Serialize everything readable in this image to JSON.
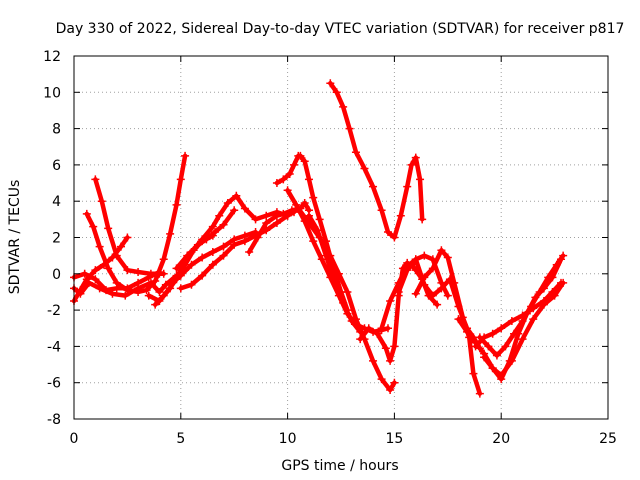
{
  "chart_data": {
    "type": "line",
    "title": "Day 330 of 2022, Sidereal Day-to-day VTEC variation (SDTVAR) for receiver p817",
    "xlabel": "GPS time / hours",
    "ylabel": "SDTVAR / TECUs",
    "xlim": [
      0,
      25
    ],
    "ylim": [
      -8,
      12
    ],
    "x_ticks": [
      "0",
      "5",
      "10",
      "15",
      "20",
      "25"
    ],
    "y_ticks": [
      "-8",
      "-6",
      "-4",
      "-2",
      "0",
      "2",
      "4",
      "6",
      "8",
      "10",
      "12"
    ],
    "x_tick_values": [
      0,
      5,
      10,
      15,
      20,
      25
    ],
    "y_tick_values": [
      -8,
      -6,
      -4,
      -2,
      0,
      2,
      4,
      6,
      8,
      10,
      12
    ],
    "grid": true,
    "legend": "none",
    "marker": "plus",
    "color": "#ff0000",
    "series": [
      {
        "x": [
          0.0,
          0.3,
          0.6,
          1.0,
          1.4,
          1.8,
          2.2,
          2.5
        ],
        "y": [
          -1.5,
          -0.9,
          -0.3,
          0.2,
          0.5,
          0.9,
          1.5,
          2.0
        ]
      },
      {
        "x": [
          0.0,
          0.3,
          0.7,
          1.2,
          1.8,
          2.4,
          3.0,
          3.6,
          4.0,
          4.3,
          4.8,
          5.2
        ],
        "y": [
          -0.8,
          -1.1,
          -0.5,
          -0.8,
          -1.1,
          -1.2,
          -0.8,
          -0.5,
          -1.0,
          -0.6,
          -0.1,
          0.2
        ]
      },
      {
        "x": [
          0.0,
          0.5,
          1.0,
          1.5,
          2.0,
          2.5,
          3.0,
          3.5,
          4.0
        ],
        "y": [
          -0.2,
          0.0,
          -0.3,
          -0.9,
          -0.8,
          -0.8,
          -0.5,
          -0.2,
          0.1
        ]
      },
      {
        "x": [
          0.6,
          0.9,
          1.2,
          1.6,
          2.0,
          2.5,
          3.0,
          3.4,
          3.8,
          4.2,
          4.5,
          4.8,
          5.0,
          5.2
        ],
        "y": [
          3.3,
          2.6,
          1.5,
          0.3,
          -0.5,
          -0.9,
          -1.0,
          -0.9,
          -0.4,
          0.8,
          2.2,
          3.8,
          5.2,
          6.5
        ]
      },
      {
        "x": [
          1.0,
          1.3,
          1.6,
          2.0,
          2.5,
          3.0,
          3.6,
          4.0,
          4.2
        ],
        "y": [
          5.2,
          4.0,
          2.5,
          1.0,
          0.2,
          0.1,
          0.0,
          0.0,
          0.0
        ]
      },
      {
        "x": [
          3.5,
          4.0,
          4.5,
          5.0,
          5.5,
          6.0,
          6.5,
          6.8,
          7.2,
          7.6,
          8.0,
          8.5,
          9.0,
          9.5,
          10.0
        ],
        "y": [
          -1.2,
          -1.5,
          -0.8,
          0.2,
          1.2,
          1.9,
          2.6,
          3.2,
          3.9,
          4.3,
          3.6,
          3.0,
          3.2,
          3.4,
          3.2
        ]
      },
      {
        "x": [
          3.8,
          4.2,
          4.8,
          5.2,
          5.6,
          6.0,
          6.5
        ],
        "y": [
          -1.7,
          -1.2,
          -0.3,
          0.5,
          1.3,
          1.8,
          2.1
        ]
      },
      {
        "x": [
          4.5,
          5.0,
          5.5,
          6.0,
          6.5,
          7.0,
          7.5,
          8.0,
          8.5
        ],
        "y": [
          -0.6,
          -0.1,
          0.5,
          0.9,
          1.2,
          1.5,
          1.9,
          2.1,
          2.3
        ]
      },
      {
        "x": [
          5.0,
          5.5,
          6.0,
          6.5,
          7.0,
          7.5,
          8.0,
          8.5,
          9.0,
          9.5,
          10.0,
          10.3
        ],
        "y": [
          -0.8,
          -0.6,
          -0.1,
          0.5,
          1.0,
          1.6,
          1.8,
          2.1,
          2.4,
          2.8,
          3.2,
          3.4
        ]
      },
      {
        "x": [
          4.8,
          5.3,
          5.8,
          6.2,
          6.6,
          7.0,
          7.5
        ],
        "y": [
          0.3,
          1.0,
          1.6,
          1.9,
          2.3,
          2.7,
          3.5
        ]
      },
      {
        "x": [
          8.2,
          8.6,
          9.0,
          9.5,
          9.8,
          10.2,
          10.6,
          10.8,
          11.0
        ],
        "y": [
          1.2,
          2.0,
          2.8,
          3.2,
          3.3,
          3.5,
          3.6,
          3.9,
          3.5
        ]
      },
      {
        "x": [
          9.5,
          9.8,
          10.1,
          10.3,
          10.5,
          10.6,
          10.8,
          11.0,
          11.2,
          11.5,
          11.8,
          12.1,
          12.5,
          12.8
        ],
        "y": [
          5.0,
          5.2,
          5.5,
          6.0,
          6.5,
          6.5,
          6.2,
          5.2,
          4.2,
          3.0,
          1.8,
          0.5,
          -1.0,
          -2.0
        ]
      },
      {
        "x": [
          10.0,
          10.4,
          10.8,
          11.2,
          11.6,
          12.0,
          12.4,
          12.8,
          13.2,
          13.6,
          14.0,
          14.4,
          14.7
        ],
        "y": [
          4.6,
          3.8,
          2.9,
          1.8,
          0.8,
          -0.2,
          -1.2,
          -2.2,
          -2.8,
          -3.0,
          -3.2,
          -3.1,
          -3.0
        ]
      },
      {
        "x": [
          10.5,
          11.0,
          11.5,
          12.0,
          12.4,
          12.8,
          13.2,
          13.6,
          14.0,
          14.4,
          14.8,
          15.0
        ],
        "y": [
          3.6,
          2.8,
          2.0,
          1.0,
          0.0,
          -1.0,
          -2.5,
          -3.6,
          -4.8,
          -5.8,
          -6.4,
          -6.0
        ]
      },
      {
        "x": [
          11.0,
          11.4,
          11.8,
          12.2,
          12.6,
          13.0,
          13.4
        ],
        "y": [
          3.2,
          2.4,
          1.0,
          -0.4,
          -1.6,
          -2.6,
          -3.2
        ]
      },
      {
        "x": [
          13.4,
          13.8,
          14.2,
          14.6,
          14.8,
          15.0,
          15.2,
          15.4,
          15.6,
          15.8,
          16.0,
          16.3,
          16.6,
          17.0
        ],
        "y": [
          -3.6,
          -3.0,
          -3.3,
          -4.1,
          -4.8,
          -4.0,
          -1.2,
          0.3,
          0.6,
          0.5,
          0.2,
          -0.3,
          -1.2,
          -1.7
        ]
      },
      {
        "x": [
          14.4,
          14.8,
          15.2,
          15.6,
          16.0,
          16.4,
          16.8,
          17.2,
          17.5
        ],
        "y": [
          -3.0,
          -1.5,
          -0.5,
          0.4,
          0.8,
          1.0,
          0.8,
          -0.5,
          -1.2
        ]
      },
      {
        "x": [
          15.2,
          15.6,
          16.0,
          16.4,
          16.8,
          17.2,
          17.6,
          18.0,
          18.4,
          18.7,
          19.0
        ],
        "y": [
          -1.0,
          0.2,
          0.8,
          -0.6,
          -1.2,
          -0.8,
          -0.3,
          -1.8,
          -3.0,
          -3.5,
          -4.1
        ]
      },
      {
        "x": [
          16.0,
          16.4,
          16.8,
          17.2,
          17.5,
          17.8,
          18.2,
          18.5,
          18.7,
          19.0
        ],
        "y": [
          -1.1,
          -0.2,
          0.3,
          1.3,
          0.9,
          -0.5,
          -2.4,
          -3.5,
          -5.5,
          -6.6
        ]
      },
      {
        "x": [
          12.0,
          12.3,
          12.6,
          12.9,
          13.2,
          13.6,
          14.0,
          14.4,
          14.7,
          15.0,
          15.3,
          15.6,
          15.8,
          16.0,
          16.2,
          16.3
        ],
        "y": [
          10.5,
          10.0,
          9.2,
          8.0,
          6.7,
          5.8,
          4.8,
          3.5,
          2.3,
          2.0,
          3.2,
          4.8,
          6.0,
          6.4,
          5.2,
          3.0
        ]
      },
      {
        "x": [
          18.0,
          18.4,
          18.8,
          19.2,
          19.6,
          20.0,
          20.4,
          20.8,
          21.2,
          21.6,
          22.0,
          22.4,
          22.8
        ],
        "y": [
          -2.5,
          -3.2,
          -3.8,
          -4.4,
          -5.2,
          -5.8,
          -4.8,
          -3.3,
          -2.2,
          -1.3,
          -0.8,
          -0.2,
          0.8
        ]
      },
      {
        "x": [
          18.8,
          19.2,
          19.6,
          20.0,
          20.5,
          21.0,
          21.5,
          22.0,
          22.4,
          22.8
        ],
        "y": [
          -4.0,
          -3.5,
          -3.3,
          -3.0,
          -2.6,
          -2.3,
          -1.9,
          -1.5,
          -1.0,
          -0.5
        ]
      },
      {
        "x": [
          19.0,
          19.4,
          19.8,
          20.2,
          20.6,
          21.0,
          21.4,
          21.8,
          22.2,
          22.6,
          22.9
        ],
        "y": [
          -3.5,
          -4.0,
          -4.5,
          -4.0,
          -3.3,
          -2.6,
          -1.8,
          -1.0,
          -0.2,
          0.5,
          1.0
        ]
      },
      {
        "x": [
          19.2,
          19.6,
          20.0,
          20.5,
          21.0,
          21.5,
          22.0,
          22.5,
          22.9
        ],
        "y": [
          -4.6,
          -5.2,
          -5.6,
          -4.8,
          -3.6,
          -2.5,
          -1.7,
          -1.2,
          -0.5
        ]
      }
    ]
  }
}
